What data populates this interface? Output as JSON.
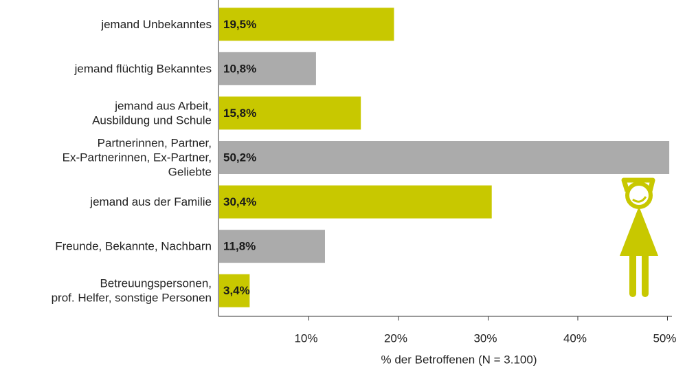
{
  "chart_data": {
    "type": "bar",
    "orientation": "horizontal",
    "categories": [
      [
        "jemand Unbekanntes"
      ],
      [
        "jemand flüchtig Bekanntes"
      ],
      [
        "jemand aus Arbeit,",
        "Ausbildung und Schule"
      ],
      [
        "Partnerinnen, Partner,",
        "Ex-Partnerinnen, Ex-Partner,",
        "Geliebte"
      ],
      [
        "jemand aus der Familie"
      ],
      [
        "Freunde, Bekannte, Nachbarn"
      ],
      [
        "Betreuungspersonen,",
        "prof. Helfer, sonstige Personen"
      ]
    ],
    "values": [
      19.5,
      10.8,
      15.8,
      50.2,
      30.4,
      11.8,
      3.4
    ],
    "value_labels": [
      "19,5%",
      "10,8%",
      "15,8%",
      "50,2%",
      "30,4%",
      "11,8%",
      "3,4%"
    ],
    "colors": [
      "#c8c800",
      "#ababab",
      "#c8c800",
      "#ababab",
      "#c8c800",
      "#ababab",
      "#c8c800"
    ],
    "xlabel": "% der Betroffenen (N = 3.100)",
    "xlim": [
      0,
      50.5
    ],
    "xticks": [
      {
        "value": 10,
        "label": "10%"
      },
      {
        "value": 20,
        "label": "20%"
      },
      {
        "value": 30,
        "label": "30%"
      },
      {
        "value": 40,
        "label": "40%"
      },
      {
        "value": 50,
        "label": "50%"
      }
    ]
  }
}
